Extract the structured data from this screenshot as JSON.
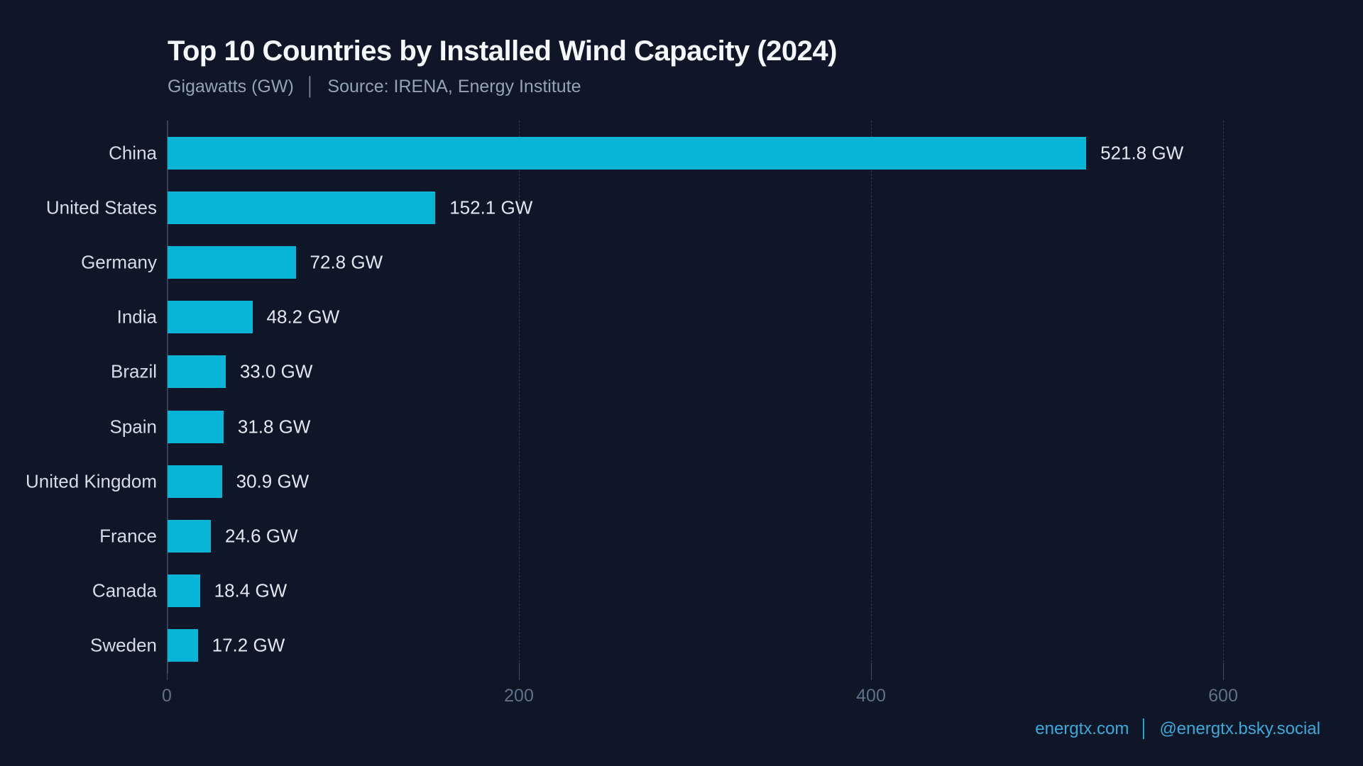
{
  "header": {
    "title": "Top 10 Countries by Installed Wind Capacity (2024)",
    "subtitle_unit": "Gigawatts (GW)",
    "subtitle_separator": "│",
    "subtitle_source": "Source: IRENA, Energy Institute"
  },
  "chart_data": {
    "type": "bar",
    "orientation": "horizontal",
    "title": "Top 10 Countries by Installed Wind Capacity (2024)",
    "xlabel": "",
    "ylabel": "",
    "categories": [
      "China",
      "United States",
      "Germany",
      "India",
      "Brazil",
      "Spain",
      "United Kingdom",
      "France",
      "Canada",
      "Sweden"
    ],
    "values": [
      521.8,
      152.1,
      72.8,
      48.2,
      33.0,
      31.8,
      30.9,
      24.6,
      18.4,
      17.2
    ],
    "value_labels": [
      "521.8 GW",
      "152.1 GW",
      "72.8 GW",
      "48.2 GW",
      "33.0 GW",
      "31.8 GW",
      "30.9 GW",
      "24.6 GW",
      "18.4 GW",
      "17.2 GW"
    ],
    "value_suffix": " GW",
    "xlim": [
      0,
      600
    ],
    "x_ticks": [
      0,
      200,
      400,
      600
    ],
    "grid": true,
    "legend": false
  },
  "colors": {
    "background": "#0e1627",
    "bar": "#08b5d6",
    "title": "#f5f8fc",
    "subtitle": "#94a3b8",
    "category_label": "#d6dce6",
    "value_label": "#e2e7ef",
    "tick_label": "#5f7088",
    "axis_line": "#33415a",
    "gridline": "#2a3850",
    "footer_text": "#3ca9da",
    "footer_separator": "#1bc3ea"
  },
  "footer": {
    "website": "energtx.com",
    "separator": "│",
    "social": "@energtx.bsky.social"
  }
}
